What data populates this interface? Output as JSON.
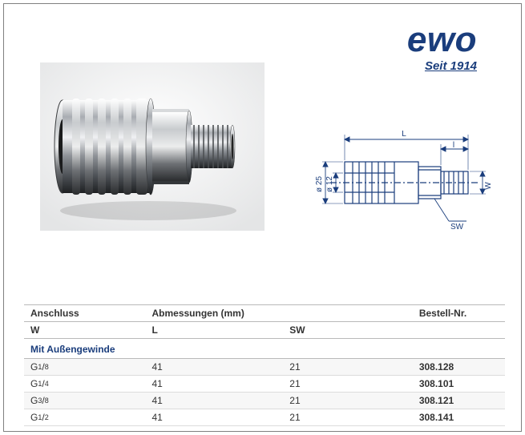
{
  "logo": {
    "brand": "ewo",
    "tagline": "Seit 1914",
    "brand_color": "#1a3d7c"
  },
  "drawing": {
    "dim_L": "L",
    "dim_l_small": "l",
    "dim_W": "W",
    "dia_outer": "ø 25",
    "dia_inner": "ø 12",
    "hex": "SW"
  },
  "table": {
    "headers": {
      "anschluss": "Anschluss",
      "abmessungen": "Abmessungen (mm)",
      "bestell": "Bestell-Nr.",
      "W": "W",
      "L": "L",
      "SW": "SW"
    },
    "section_label": "Mit Außengewinde",
    "rows": [
      {
        "w_main": "G",
        "w_num": "1",
        "w_den": "8",
        "L": "41",
        "SW": "21",
        "order": "308.128"
      },
      {
        "w_main": "G",
        "w_num": "1",
        "w_den": "4",
        "L": "41",
        "SW": "21",
        "order": "308.101"
      },
      {
        "w_main": "G",
        "w_num": "3",
        "w_den": "8",
        "L": "41",
        "SW": "21",
        "order": "308.121"
      },
      {
        "w_main": "G",
        "w_num": "1",
        "w_den": "2",
        "L": "41",
        "SW": "21",
        "order": "308.141"
      }
    ]
  },
  "style": {
    "table_border": "#b9b9b9",
    "row_border": "#dcdcdc",
    "section_color": "#1a3d7c",
    "text_color": "#333333",
    "drawing_line": "#1a3d7c"
  }
}
